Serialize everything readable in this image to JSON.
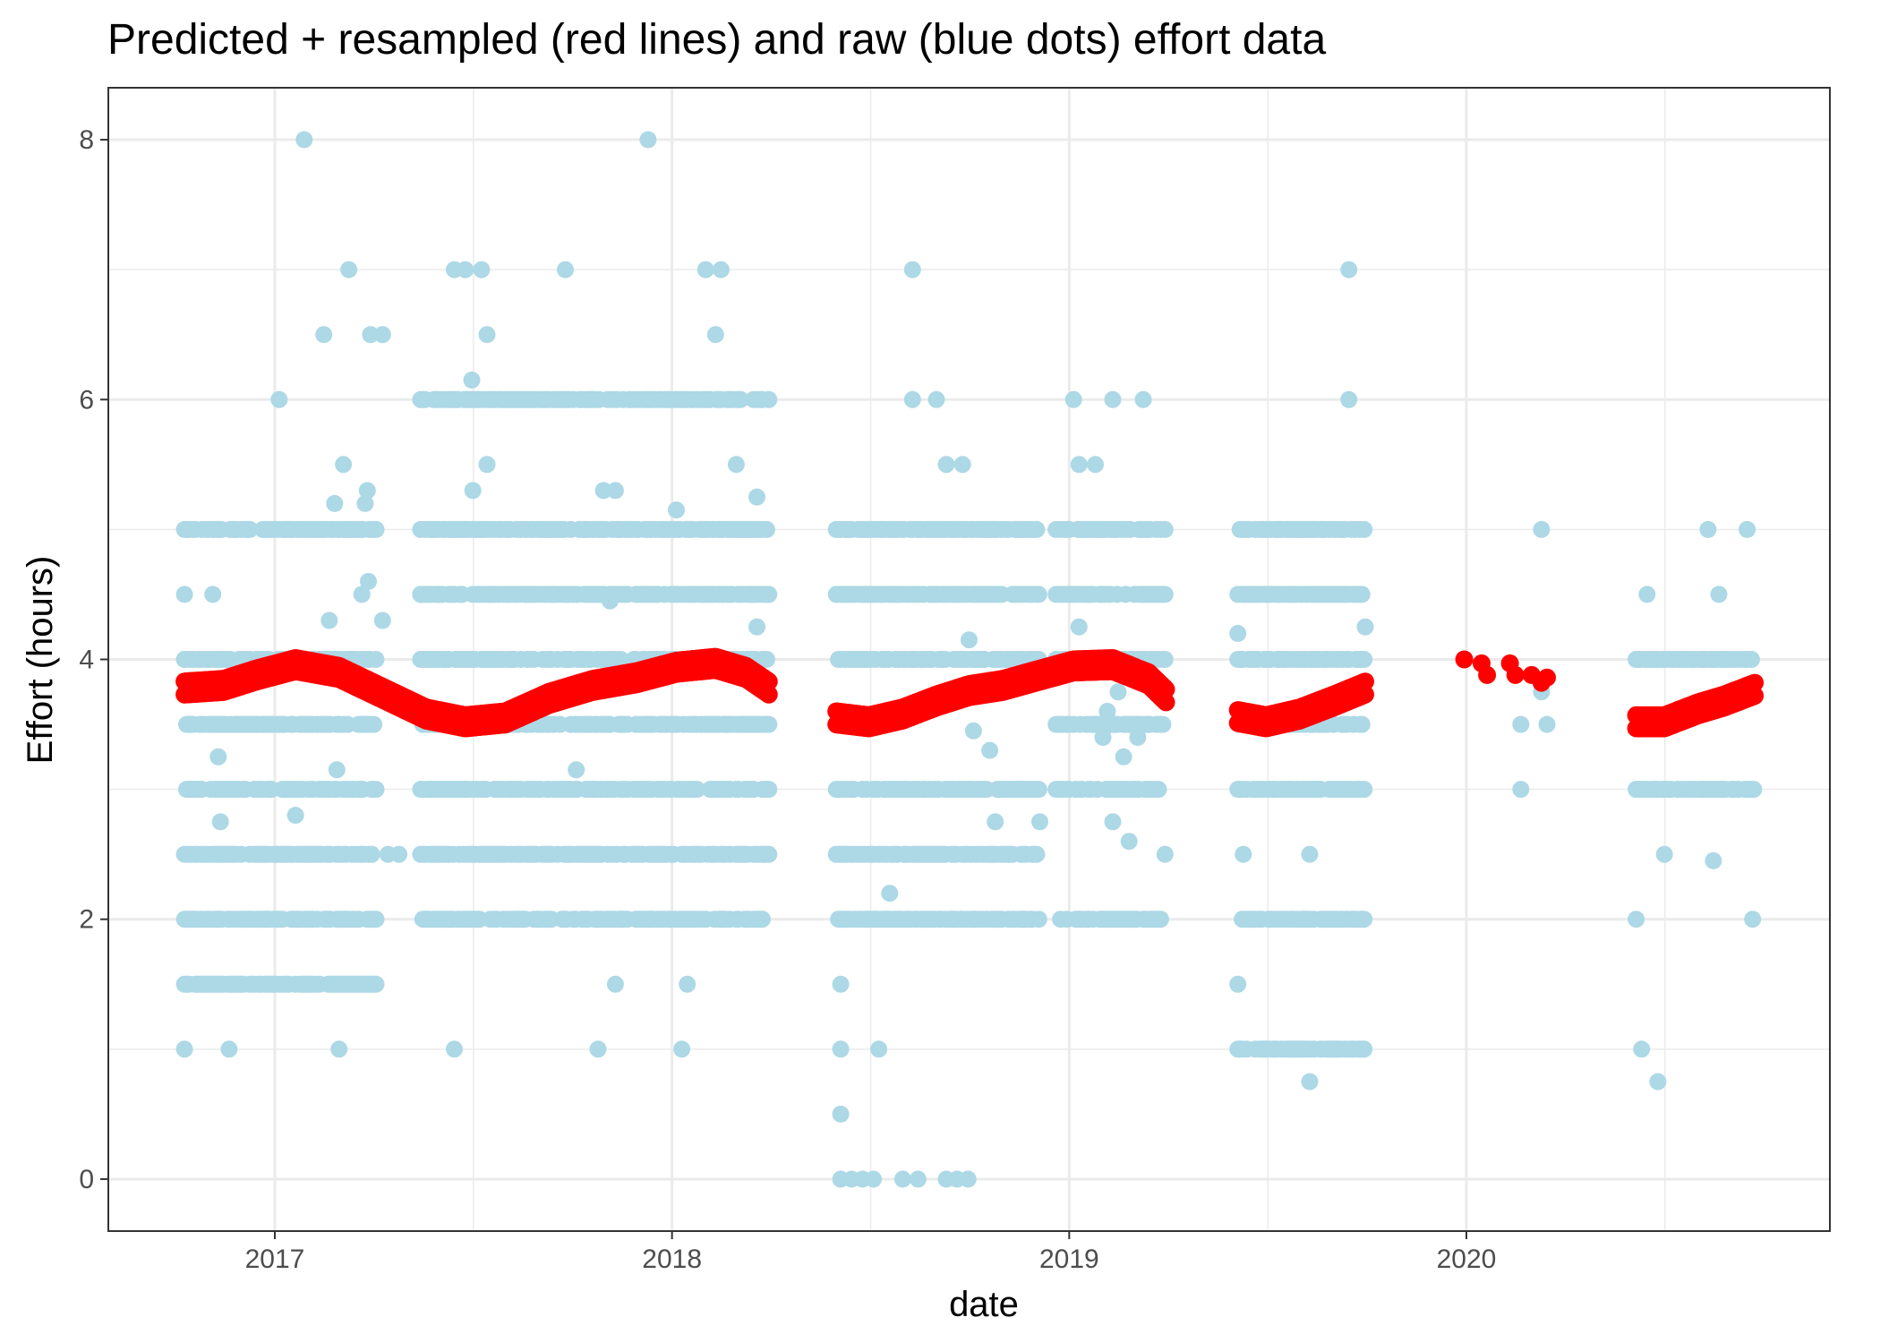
{
  "chart_data": {
    "type": "scatter",
    "title": "Predicted + resampled (red lines) and raw (blue dots) effort data",
    "xlabel": "date",
    "ylabel": "Effort (hours)",
    "x_axis": {
      "type": "date",
      "range": [
        "2016-08-01",
        "2020-11-30"
      ],
      "tick_labels": [
        "2017",
        "2018",
        "2019",
        "2020"
      ],
      "tick_values": [
        "2017-01-01",
        "2018-01-01",
        "2019-01-01",
        "2020-01-01"
      ]
    },
    "y_axis": {
      "range": [
        -0.4,
        8.4
      ],
      "tick_labels": [
        "0",
        "2",
        "4",
        "6",
        "8"
      ],
      "tick_values": [
        0,
        2,
        4,
        6,
        8
      ]
    },
    "grid": true,
    "legend": "none",
    "colors": {
      "raw": "#add8e6",
      "predicted": "#ff0000"
    },
    "series": [
      {
        "name": "raw",
        "style": "points",
        "color": "#add8e6",
        "segments": [
          {
            "start": "2016-10-10",
            "end": "2017-04-05",
            "levels": [
              5,
              4,
              3.5,
              3,
              2.5,
              2,
              1.5
            ]
          },
          {
            "start": "2017-05-15",
            "end": "2018-03-31",
            "levels": [
              6,
              5,
              4.5,
              4,
              3.5,
              3,
              2.5,
              2
            ]
          },
          {
            "start": "2018-06-01",
            "end": "2018-12-05",
            "levels": [
              5,
              4.5,
              4,
              3,
              2.5,
              2
            ]
          },
          {
            "start": "2018-12-20",
            "end": "2019-03-31",
            "levels": [
              5,
              4.5,
              4,
              3.5,
              3,
              2
            ]
          },
          {
            "start": "2019-06-05",
            "end": "2019-09-30",
            "levels": [
              5,
              4.5,
              4,
              3.5,
              3,
              2,
              1
            ]
          },
          {
            "start": "2020-06-05",
            "end": "2020-09-22",
            "levels": [
              4,
              3
            ]
          }
        ],
        "points": [
          [
            "2016-10-10",
            1
          ],
          [
            "2016-10-10",
            4.5
          ],
          [
            "2016-10-10",
            4
          ],
          [
            "2016-11-05",
            4.5
          ],
          [
            "2016-11-10",
            3.25
          ],
          [
            "2016-11-12",
            2.75
          ],
          [
            "2016-11-20",
            1
          ],
          [
            "2017-01-05",
            6
          ],
          [
            "2017-01-20",
            2.8
          ],
          [
            "2017-01-28",
            8
          ],
          [
            "2017-02-15",
            6.5
          ],
          [
            "2017-02-20",
            4.3
          ],
          [
            "2017-02-25",
            5.2
          ],
          [
            "2017-02-27",
            3.15
          ],
          [
            "2017-03-01",
            1.5
          ],
          [
            "2017-03-01",
            1
          ],
          [
            "2017-03-05",
            5.5
          ],
          [
            "2017-03-10",
            7
          ],
          [
            "2017-03-22",
            4.5
          ],
          [
            "2017-03-25",
            5.2
          ],
          [
            "2017-03-27",
            5.3
          ],
          [
            "2017-03-28",
            4.6
          ],
          [
            "2017-03-30",
            6.5
          ],
          [
            "2017-04-10",
            6.5
          ],
          [
            "2017-04-10",
            4.3
          ],
          [
            "2017-04-15",
            2.5
          ],
          [
            "2017-04-25",
            2.5
          ],
          [
            "2017-05-15",
            4.5
          ],
          [
            "2017-05-25",
            4.5
          ],
          [
            "2017-06-05",
            2.5
          ],
          [
            "2017-06-15",
            4.5
          ],
          [
            "2017-06-15",
            1
          ],
          [
            "2017-06-15",
            7
          ],
          [
            "2017-06-25",
            7
          ],
          [
            "2017-07-01",
            6.15
          ],
          [
            "2017-07-02",
            5.3
          ],
          [
            "2017-07-10",
            7
          ],
          [
            "2017-07-15",
            6.5
          ],
          [
            "2017-07-15",
            5.5
          ],
          [
            "2017-07-18",
            4.5
          ],
          [
            "2017-08-20",
            4.5
          ],
          [
            "2017-09-10",
            2.5
          ],
          [
            "2017-09-25",
            7
          ],
          [
            "2017-10-05",
            3.15
          ],
          [
            "2017-10-25",
            1
          ],
          [
            "2017-10-30",
            5.3
          ],
          [
            "2017-11-10",
            5.3
          ],
          [
            "2017-11-10",
            1.5
          ],
          [
            "2017-11-05",
            4.45
          ],
          [
            "2017-12-10",
            8
          ],
          [
            "2018-01-05",
            5.15
          ],
          [
            "2018-01-10",
            1
          ],
          [
            "2018-01-15",
            1.5
          ],
          [
            "2018-02-01",
            7
          ],
          [
            "2018-02-15",
            7
          ],
          [
            "2018-02-10",
            6.5
          ],
          [
            "2018-03-01",
            5.5
          ],
          [
            "2018-03-20",
            5.25
          ],
          [
            "2018-03-20",
            4.25
          ],
          [
            "2018-03-25",
            2.5
          ],
          [
            "2018-06-05",
            1.5
          ],
          [
            "2018-06-05",
            0.5
          ],
          [
            "2018-06-05",
            1
          ],
          [
            "2018-06-05",
            0
          ],
          [
            "2018-06-15",
            0
          ],
          [
            "2018-06-25",
            0
          ],
          [
            "2018-07-05",
            0
          ],
          [
            "2018-07-10",
            1
          ],
          [
            "2018-07-20",
            2.2
          ],
          [
            "2018-08-10",
            7
          ],
          [
            "2018-08-01",
            0
          ],
          [
            "2018-08-15",
            0
          ],
          [
            "2018-09-10",
            0
          ],
          [
            "2018-09-20",
            0
          ],
          [
            "2018-09-30",
            0
          ],
          [
            "2018-08-10",
            6
          ],
          [
            "2018-09-01",
            6
          ],
          [
            "2018-09-10",
            5.5
          ],
          [
            "2018-09-25",
            5.5
          ],
          [
            "2018-10-01",
            4.15
          ],
          [
            "2018-10-05",
            3.45
          ],
          [
            "2018-10-20",
            3.3
          ],
          [
            "2018-10-25",
            2.75
          ],
          [
            "2018-11-20",
            2
          ],
          [
            "2018-11-15",
            3
          ],
          [
            "2018-12-05",
            2.75
          ],
          [
            "2019-01-10",
            4.25
          ],
          [
            "2019-01-10",
            5.5
          ],
          [
            "2019-01-05",
            6
          ],
          [
            "2019-02-10",
            6
          ],
          [
            "2019-02-01",
            3.4
          ],
          [
            "2019-02-05",
            3.6
          ],
          [
            "2019-02-10",
            2.75
          ],
          [
            "2019-02-20",
            3.25
          ],
          [
            "2019-02-25",
            2.6
          ],
          [
            "2019-03-05",
            3.4
          ],
          [
            "2019-03-10",
            6
          ],
          [
            "2019-03-30",
            2.5
          ],
          [
            "2019-01-25",
            5.5
          ],
          [
            "2019-02-15",
            3.75
          ],
          [
            "2019-06-05",
            4.2
          ],
          [
            "2019-06-05",
            1.5
          ],
          [
            "2019-06-10",
            2.5
          ],
          [
            "2019-08-10",
            0.75
          ],
          [
            "2019-08-10",
            2.5
          ],
          [
            "2019-09-15",
            7
          ],
          [
            "2019-09-15",
            6
          ],
          [
            "2019-09-30",
            4.25
          ],
          [
            "2020-03-10",
            5
          ],
          [
            "2020-02-20",
            3
          ],
          [
            "2020-03-15",
            3.5
          ],
          [
            "2020-02-20",
            3.5
          ],
          [
            "2020-03-10",
            3.75
          ],
          [
            "2020-06-05",
            2
          ],
          [
            "2020-06-15",
            4.5
          ],
          [
            "2020-06-10",
            1
          ],
          [
            "2020-06-25",
            0.75
          ],
          [
            "2020-07-01",
            2.5
          ],
          [
            "2020-08-15",
            2.45
          ],
          [
            "2020-08-20",
            4.5
          ],
          [
            "2020-08-10",
            5
          ],
          [
            "2020-09-20",
            2
          ],
          [
            "2020-09-15",
            5
          ]
        ]
      },
      {
        "name": "predicted",
        "style": "thick-line",
        "color": "#ff0000",
        "segments": [
          {
            "x": [
              "2016-10-10",
              "2016-11-15",
              "2016-12-15",
              "2017-01-20",
              "2017-03-01",
              "2017-04-15",
              "2017-05-20",
              "2017-06-25",
              "2017-08-01",
              "2017-09-10",
              "2017-10-20",
              "2017-11-30",
              "2018-01-05",
              "2018-02-10",
              "2018-03-10",
              "2018-03-31"
            ],
            "y": [
              3.78,
              3.8,
              3.88,
              3.96,
              3.9,
              3.72,
              3.58,
              3.52,
              3.55,
              3.7,
              3.8,
              3.86,
              3.94,
              3.97,
              3.9,
              3.78
            ]
          },
          {
            "x": [
              "2018-06-01",
              "2018-07-01",
              "2018-08-01",
              "2018-09-01",
              "2018-10-01",
              "2018-11-01",
              "2018-12-01",
              "2019-01-05",
              "2019-02-10",
              "2019-03-15",
              "2019-03-31"
            ],
            "y": [
              3.55,
              3.52,
              3.58,
              3.68,
              3.76,
              3.8,
              3.87,
              3.95,
              3.96,
              3.85,
              3.72
            ]
          },
          {
            "x": [
              "2019-06-05",
              "2019-07-01",
              "2019-08-01",
              "2019-09-01",
              "2019-09-30"
            ],
            "y": [
              3.56,
              3.52,
              3.58,
              3.68,
              3.78
            ]
          },
          {
            "x": [
              "2019-12-30",
              "2020-01-15",
              "2020-01-20",
              "2020-02-10",
              "2020-02-15",
              "2020-03-01",
              "2020-03-10",
              "2020-03-15"
            ],
            "y": [
              4.0,
              3.97,
              3.88,
              3.97,
              3.88,
              3.88,
              3.82,
              3.86
            ]
          },
          {
            "x": [
              "2020-06-05",
              "2020-07-01",
              "2020-08-01",
              "2020-08-25",
              "2020-09-22"
            ],
            "y": [
              3.52,
              3.52,
              3.62,
              3.68,
              3.77
            ]
          }
        ]
      }
    ]
  }
}
